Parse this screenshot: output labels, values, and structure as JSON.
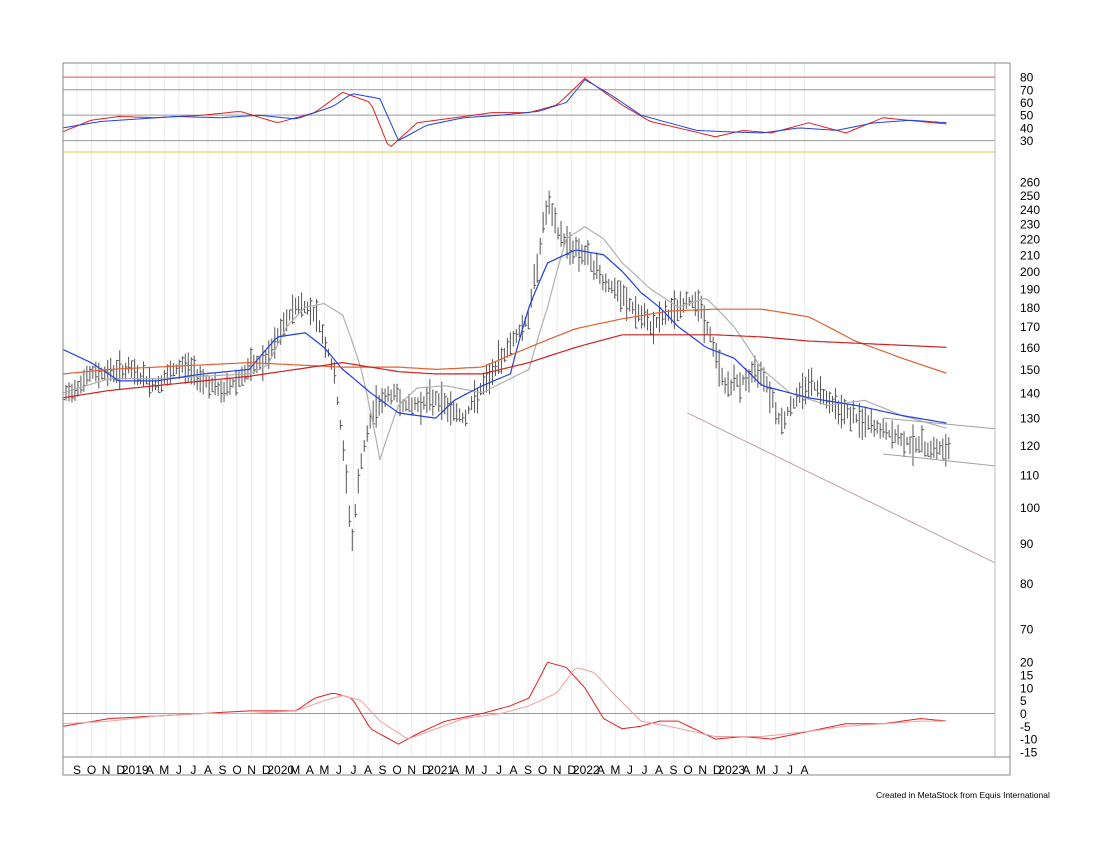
{
  "credit": "Created in MetaStock from Equis International",
  "chart_data": [
    {
      "type": "line",
      "panel": "oscillator-top",
      "y_ticks": [
        30,
        40,
        50,
        60,
        70,
        80
      ],
      "ylim": [
        21,
        84
      ],
      "reference_lines": [
        {
          "value": 80,
          "color": "#e05050"
        },
        {
          "value": 70,
          "color": "#999999"
        },
        {
          "value": 50,
          "color": "#999999"
        },
        {
          "value": 30,
          "color": "#999999"
        },
        {
          "value": 21,
          "color": "#e8c840"
        }
      ],
      "series": [
        {
          "color": "#e02020",
          "t": [
            0,
            0.03,
            0.06,
            0.1,
            0.15,
            0.19,
            0.23,
            0.27,
            0.3,
            0.33,
            0.35,
            0.38,
            0.42,
            0.46,
            0.5,
            0.53,
            0.56,
            0.6,
            0.63,
            0.66,
            0.7,
            0.73,
            0.76,
            0.8,
            0.84,
            0.88,
            0.92,
            0.95
          ],
          "values": [
            37,
            46,
            49,
            48,
            50,
            53,
            44,
            52,
            68,
            60,
            24,
            44,
            48,
            52,
            52,
            58,
            79,
            58,
            45,
            40,
            33,
            38,
            36,
            44,
            36,
            48,
            45,
            43
          ]
        },
        {
          "color": "#2040e0",
          "t": [
            0,
            0.04,
            0.08,
            0.12,
            0.17,
            0.21,
            0.25,
            0.29,
            0.31,
            0.34,
            0.36,
            0.39,
            0.43,
            0.47,
            0.51,
            0.54,
            0.56,
            0.59,
            0.62,
            0.65,
            0.68,
            0.71,
            0.75,
            0.79,
            0.83,
            0.87,
            0.91,
            0.95
          ],
          "values": [
            40,
            45,
            47,
            49,
            48,
            50,
            47,
            57,
            67,
            63,
            30,
            42,
            48,
            50,
            53,
            60,
            78,
            65,
            50,
            44,
            38,
            37,
            36,
            40,
            38,
            44,
            46,
            44
          ]
        }
      ]
    },
    {
      "type": "line",
      "panel": "price",
      "scale": "log",
      "y_ticks": [
        70,
        80,
        90,
        100,
        110,
        120,
        130,
        140,
        150,
        160,
        170,
        180,
        190,
        200,
        210,
        220,
        230,
        240,
        250,
        260
      ],
      "x_labels": [
        "S",
        "O",
        "N",
        "D",
        "2019",
        "A",
        "M",
        "J",
        "J",
        "A",
        "S",
        "O",
        "N",
        "D",
        "2020",
        "M",
        "A",
        "M",
        "J",
        "J",
        "A",
        "S",
        "O",
        "N",
        "D",
        "2021",
        "A",
        "M",
        "J",
        "J",
        "A",
        "S",
        "O",
        "N",
        "D",
        "2022",
        "A",
        "M",
        "J",
        "J",
        "A",
        "S",
        "O",
        "N",
        "D",
        "2023",
        "A",
        "M",
        "J",
        "J",
        "A"
      ],
      "price_path": {
        "t": [
          0,
          0.03,
          0.07,
          0.1,
          0.13,
          0.17,
          0.2,
          0.22,
          0.25,
          0.27,
          0.29,
          0.31,
          0.32,
          0.335,
          0.355,
          0.37,
          0.4,
          0.43,
          0.46,
          0.48,
          0.5,
          0.52,
          0.53,
          0.545,
          0.56,
          0.58,
          0.6,
          0.63,
          0.66,
          0.68,
          0.71,
          0.73,
          0.75,
          0.77,
          0.8,
          0.83,
          0.85,
          0.88,
          0.9,
          0.92,
          0.95
        ],
        "values": [
          138,
          148,
          150,
          143,
          152,
          140,
          150,
          155,
          182,
          178,
          150,
          90,
          115,
          135,
          140,
          134,
          138,
          130,
          148,
          162,
          175,
          245,
          225,
          215,
          210,
          195,
          185,
          170,
          180,
          185,
          143,
          145,
          150,
          128,
          145,
          135,
          130,
          125,
          122,
          120,
          118
        ]
      },
      "series": [
        {
          "color": "#b0b0b0",
          "t": [
            0,
            0.05,
            0.1,
            0.15,
            0.2,
            0.22,
            0.24,
            0.26,
            0.28,
            0.3,
            0.32,
            0.34,
            0.36,
            0.38,
            0.41,
            0.45,
            0.5,
            0.52,
            0.54,
            0.56,
            0.58,
            0.6,
            0.63,
            0.66,
            0.69,
            0.72,
            0.75,
            0.78,
            0.82,
            0.86,
            0.9,
            0.95
          ],
          "values": [
            140,
            146,
            146,
            147,
            148,
            152,
            170,
            180,
            182,
            176,
            150,
            115,
            135,
            142,
            143,
            140,
            150,
            180,
            220,
            228,
            220,
            205,
            190,
            180,
            185,
            170,
            150,
            140,
            135,
            137,
            131,
            126
          ]
        },
        {
          "color": "#2040e0",
          "t": [
            0,
            0.03,
            0.06,
            0.1,
            0.15,
            0.2,
            0.23,
            0.26,
            0.28,
            0.3,
            0.33,
            0.36,
            0.4,
            0.42,
            0.45,
            0.48,
            0.5,
            0.52,
            0.55,
            0.58,
            0.6,
            0.62,
            0.64,
            0.66,
            0.69,
            0.72,
            0.75,
            0.8,
            0.85,
            0.9,
            0.95
          ],
          "values": [
            159,
            153,
            145,
            145,
            148,
            150,
            165,
            167,
            160,
            150,
            140,
            132,
            130,
            137,
            143,
            148,
            180,
            205,
            213,
            210,
            200,
            188,
            180,
            170,
            160,
            155,
            143,
            138,
            135,
            131,
            128
          ]
        },
        {
          "color": "#e06030",
          "t": [
            0,
            0.05,
            0.1,
            0.15,
            0.2,
            0.25,
            0.3,
            0.33,
            0.36,
            0.4,
            0.45,
            0.5,
            0.55,
            0.6,
            0.65,
            0.7,
            0.75,
            0.8,
            0.85,
            0.9,
            0.95
          ],
          "values": [
            148,
            150,
            151,
            152,
            153,
            152,
            151,
            151,
            151,
            150,
            151,
            160,
            169,
            174,
            178,
            179,
            179,
            175,
            163,
            155,
            148
          ]
        },
        {
          "color": "#d02020",
          "t": [
            0,
            0.05,
            0.1,
            0.15,
            0.2,
            0.25,
            0.3,
            0.33,
            0.36,
            0.4,
            0.45,
            0.5,
            0.55,
            0.6,
            0.65,
            0.7,
            0.75,
            0.8,
            0.85,
            0.9,
            0.95
          ],
          "values": [
            138,
            141,
            143,
            145,
            147,
            150,
            153,
            151,
            149,
            148,
            148,
            153,
            160,
            166,
            166,
            166,
            165,
            163,
            162,
            161,
            160
          ]
        }
      ],
      "trendlines": [
        {
          "color": "#c0a0a0",
          "from": {
            "t": 0.67,
            "value": 132
          },
          "to": {
            "t": 1.0,
            "value": 85
          }
        },
        {
          "color": "#a0a0a0",
          "from": {
            "t": 0.88,
            "value": 130
          },
          "to": {
            "t": 1.0,
            "value": 126
          }
        },
        {
          "color": "#a0a0a0",
          "from": {
            "t": 0.88,
            "value": 117
          },
          "to": {
            "t": 1.0,
            "value": 113
          }
        }
      ]
    },
    {
      "type": "line",
      "panel": "oscillator-bottom",
      "y_ticks": [
        -15,
        -10,
        -5,
        0,
        5,
        10,
        15,
        20
      ],
      "ylim": [
        -17,
        24
      ],
      "reference_lines": [
        {
          "value": 0,
          "color": "#999999"
        }
      ],
      "series": [
        {
          "color": "#e02020",
          "t": [
            0,
            0.05,
            0.1,
            0.15,
            0.2,
            0.25,
            0.27,
            0.29,
            0.31,
            0.33,
            0.36,
            0.38,
            0.41,
            0.45,
            0.48,
            0.5,
            0.52,
            0.54,
            0.56,
            0.58,
            0.6,
            0.62,
            0.64,
            0.66,
            0.7,
            0.73,
            0.76,
            0.8,
            0.84,
            0.88,
            0.92,
            0.95
          ],
          "values": [
            -5,
            -2,
            -1,
            0,
            1,
            1,
            6,
            8,
            6,
            -6,
            -12,
            -8,
            -3,
            0,
            3,
            6,
            20,
            18,
            10,
            -2,
            -6,
            -5,
            -3,
            -3,
            -10,
            -9,
            -10,
            -7,
            -4,
            -4,
            -2,
            -3
          ]
        },
        {
          "color": "#f0a0a0",
          "t": [
            0,
            0.05,
            0.1,
            0.15,
            0.2,
            0.25,
            0.28,
            0.3,
            0.32,
            0.34,
            0.37,
            0.4,
            0.43,
            0.47,
            0.5,
            0.53,
            0.55,
            0.57,
            0.59,
            0.62,
            0.65,
            0.7,
            0.75,
            0.8,
            0.84,
            0.88,
            0.92,
            0.95
          ],
          "values": [
            -4,
            -3,
            -1,
            0,
            0,
            1,
            5,
            7,
            5,
            -3,
            -10,
            -6,
            -2,
            0,
            3,
            8,
            18,
            16,
            8,
            -3,
            -5,
            -9,
            -9,
            -7,
            -5,
            -4,
            -3,
            -3
          ]
        }
      ]
    }
  ]
}
